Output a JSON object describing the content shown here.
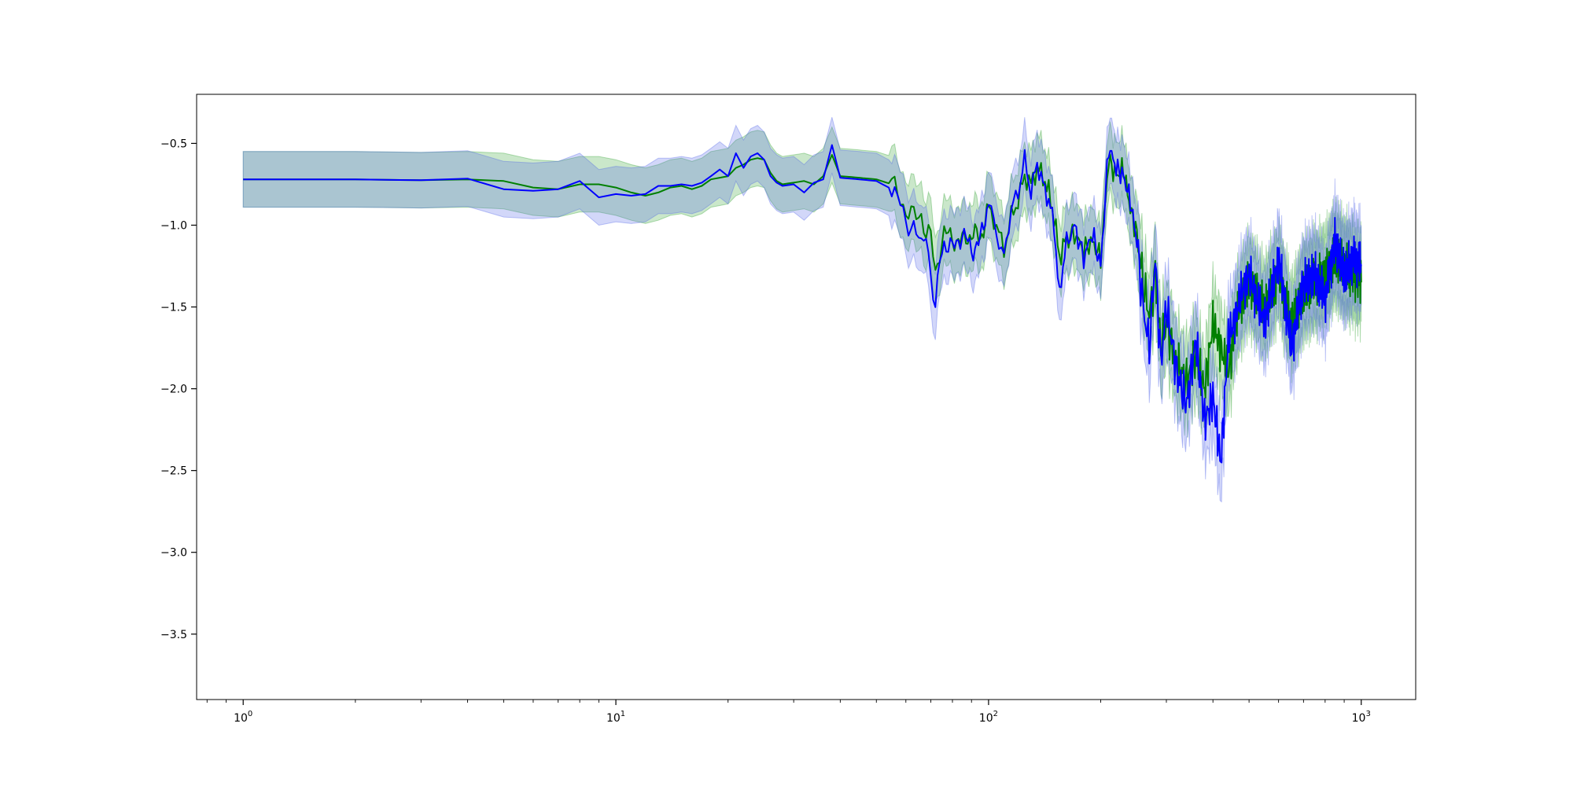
{
  "chart_data": {
    "type": "line",
    "title": "",
    "xlabel": "",
    "ylabel": "",
    "xscale": "log",
    "xlim": [
      0.75,
      1400
    ],
    "ylim": [
      -3.9,
      -0.2
    ],
    "x_ticks": [
      {
        "value": 1,
        "base": "10",
        "exp": "0"
      },
      {
        "value": 10,
        "base": "10",
        "exp": "1"
      },
      {
        "value": 100,
        "base": "10",
        "exp": "2"
      },
      {
        "value": 1000,
        "base": "10",
        "exp": "3"
      }
    ],
    "y_ticks": [
      {
        "value": -0.5,
        "label": "−0.5"
      },
      {
        "value": -1.0,
        "label": "−1.0"
      },
      {
        "value": -1.5,
        "label": "−1.5"
      },
      {
        "value": -2.0,
        "label": "−2.0"
      },
      {
        "value": -2.5,
        "label": "−2.5"
      },
      {
        "value": -3.0,
        "label": "−3.0"
      },
      {
        "value": -3.5,
        "label": "−3.5"
      }
    ],
    "grid": false,
    "legend": "none",
    "series": [
      {
        "color": "#008000",
        "band_color": "#2ca02c",
        "band_opacity": 0.25,
        "points": [
          [
            1,
            -0.72
          ],
          [
            2,
            -0.72
          ],
          [
            3,
            -0.725
          ],
          [
            4,
            -0.72
          ],
          [
            5,
            -0.73
          ],
          [
            6,
            -0.77
          ],
          [
            7,
            -0.78
          ],
          [
            8,
            -0.75
          ],
          [
            9,
            -0.75
          ],
          [
            10,
            -0.77
          ],
          [
            11,
            -0.8
          ],
          [
            12,
            -0.82
          ],
          [
            13,
            -0.8
          ],
          [
            14,
            -0.77
          ],
          [
            15,
            -0.76
          ],
          [
            16,
            -0.78
          ],
          [
            17,
            -0.76
          ],
          [
            18,
            -0.72
          ],
          [
            19,
            -0.71
          ],
          [
            20,
            -0.7
          ],
          [
            21,
            -0.65
          ],
          [
            22,
            -0.63
          ],
          [
            23,
            -0.6
          ],
          [
            24,
            -0.59
          ],
          [
            25,
            -0.6
          ],
          [
            26,
            -0.68
          ],
          [
            27,
            -0.73
          ],
          [
            28,
            -0.75
          ],
          [
            30,
            -0.74
          ],
          [
            32,
            -0.73
          ],
          [
            34,
            -0.75
          ],
          [
            36,
            -0.7
          ],
          [
            38,
            -0.57
          ],
          [
            40,
            -0.7
          ],
          [
            45,
            -0.71
          ],
          [
            50,
            -0.72
          ],
          [
            55,
            -0.75
          ],
          [
            58,
            -0.82
          ],
          [
            60,
            -0.92
          ],
          [
            63,
            -0.95
          ],
          [
            66,
            -0.93
          ],
          [
            68,
            -1.05
          ],
          [
            70,
            -1.07
          ],
          [
            72,
            -1.3
          ],
          [
            74,
            -1.15
          ],
          [
            76,
            -1.05
          ],
          [
            80,
            -1.08
          ],
          [
            85,
            -1.1
          ],
          [
            90,
            -1.05
          ],
          [
            95,
            -1.08
          ],
          [
            100,
            -0.9
          ],
          [
            105,
            -1.0
          ],
          [
            110,
            -1.15
          ],
          [
            115,
            -0.95
          ],
          [
            120,
            -0.85
          ],
          [
            125,
            -0.7
          ],
          [
            130,
            -0.75
          ],
          [
            135,
            -0.65
          ],
          [
            140,
            -0.7
          ],
          [
            145,
            -0.8
          ],
          [
            150,
            -0.95
          ],
          [
            155,
            -1.2
          ],
          [
            160,
            -1.1
          ],
          [
            170,
            -1.05
          ],
          [
            180,
            -1.15
          ],
          [
            190,
            -1.1
          ],
          [
            200,
            -1.2
          ],
          [
            210,
            -0.6
          ],
          [
            220,
            -0.7
          ],
          [
            230,
            -0.65
          ],
          [
            240,
            -0.9
          ],
          [
            250,
            -1.05
          ],
          [
            260,
            -1.35
          ],
          [
            270,
            -1.55
          ],
          [
            280,
            -1.3
          ],
          [
            290,
            -1.75
          ],
          [
            300,
            -1.6
          ],
          [
            320,
            -1.85
          ],
          [
            340,
            -1.95
          ],
          [
            360,
            -1.8
          ],
          [
            380,
            -2.0
          ],
          [
            400,
            -1.6
          ],
          [
            420,
            -1.75
          ],
          [
            440,
            -1.9
          ],
          [
            460,
            -1.6
          ],
          [
            480,
            -1.45
          ],
          [
            500,
            -1.35
          ],
          [
            550,
            -1.5
          ],
          [
            600,
            -1.3
          ],
          [
            650,
            -1.6
          ],
          [
            700,
            -1.4
          ],
          [
            750,
            -1.35
          ],
          [
            800,
            -1.3
          ],
          [
            850,
            -1.2
          ],
          [
            900,
            -1.25
          ],
          [
            950,
            -1.3
          ],
          [
            1000,
            -1.35
          ]
        ]
      },
      {
        "color": "#0000ff",
        "band_color": "#4b5fe8",
        "band_opacity": 0.25,
        "points": [
          [
            1,
            -0.72
          ],
          [
            2,
            -0.72
          ],
          [
            3,
            -0.725
          ],
          [
            4,
            -0.715
          ],
          [
            5,
            -0.78
          ],
          [
            6,
            -0.79
          ],
          [
            7,
            -0.78
          ],
          [
            8,
            -0.73
          ],
          [
            9,
            -0.83
          ],
          [
            10,
            -0.81
          ],
          [
            11,
            -0.82
          ],
          [
            12,
            -0.81
          ],
          [
            13,
            -0.76
          ],
          [
            14,
            -0.76
          ],
          [
            15,
            -0.75
          ],
          [
            16,
            -0.76
          ],
          [
            17,
            -0.74
          ],
          [
            18,
            -0.7
          ],
          [
            19,
            -0.66
          ],
          [
            20,
            -0.7
          ],
          [
            21,
            -0.56
          ],
          [
            22,
            -0.65
          ],
          [
            23,
            -0.58
          ],
          [
            24,
            -0.56
          ],
          [
            25,
            -0.6
          ],
          [
            26,
            -0.7
          ],
          [
            27,
            -0.74
          ],
          [
            28,
            -0.76
          ],
          [
            30,
            -0.75
          ],
          [
            32,
            -0.8
          ],
          [
            34,
            -0.74
          ],
          [
            36,
            -0.72
          ],
          [
            38,
            -0.51
          ],
          [
            40,
            -0.71
          ],
          [
            45,
            -0.72
          ],
          [
            50,
            -0.73
          ],
          [
            55,
            -0.78
          ],
          [
            58,
            -0.88
          ],
          [
            60,
            -0.98
          ],
          [
            63,
            -1.0
          ],
          [
            66,
            -1.15
          ],
          [
            68,
            -1.02
          ],
          [
            70,
            -1.3
          ],
          [
            72,
            -1.55
          ],
          [
            74,
            -1.2
          ],
          [
            76,
            -1.1
          ],
          [
            80,
            -1.15
          ],
          [
            85,
            -1.05
          ],
          [
            90,
            -1.15
          ],
          [
            95,
            -1.1
          ],
          [
            100,
            -0.85
          ],
          [
            105,
            -1.05
          ],
          [
            110,
            -1.2
          ],
          [
            115,
            -0.9
          ],
          [
            120,
            -0.8
          ],
          [
            125,
            -0.6
          ],
          [
            130,
            -0.8
          ],
          [
            135,
            -0.62
          ],
          [
            140,
            -0.75
          ],
          [
            145,
            -0.85
          ],
          [
            150,
            -1.0
          ],
          [
            155,
            -1.45
          ],
          [
            160,
            -1.15
          ],
          [
            170,
            -1.0
          ],
          [
            180,
            -1.2
          ],
          [
            190,
            -1.05
          ],
          [
            200,
            -1.25
          ],
          [
            210,
            -0.52
          ],
          [
            220,
            -0.65
          ],
          [
            230,
            -0.7
          ],
          [
            240,
            -0.85
          ],
          [
            250,
            -1.1
          ],
          [
            260,
            -1.5
          ],
          [
            270,
            -1.75
          ],
          [
            280,
            -1.2
          ],
          [
            290,
            -1.85
          ],
          [
            300,
            -1.5
          ],
          [
            320,
            -1.9
          ],
          [
            340,
            -2.1
          ],
          [
            360,
            -1.7
          ],
          [
            380,
            -2.2
          ],
          [
            400,
            -2.05
          ],
          [
            420,
            -2.45
          ],
          [
            440,
            -1.7
          ],
          [
            460,
            -1.55
          ],
          [
            480,
            -1.4
          ],
          [
            500,
            -1.3
          ],
          [
            550,
            -1.6
          ],
          [
            600,
            -1.2
          ],
          [
            650,
            -1.75
          ],
          [
            700,
            -1.35
          ],
          [
            750,
            -1.3
          ],
          [
            800,
            -1.45
          ],
          [
            850,
            -1.1
          ],
          [
            900,
            -1.3
          ],
          [
            950,
            -1.2
          ],
          [
            1000,
            -1.25
          ]
        ]
      }
    ]
  }
}
